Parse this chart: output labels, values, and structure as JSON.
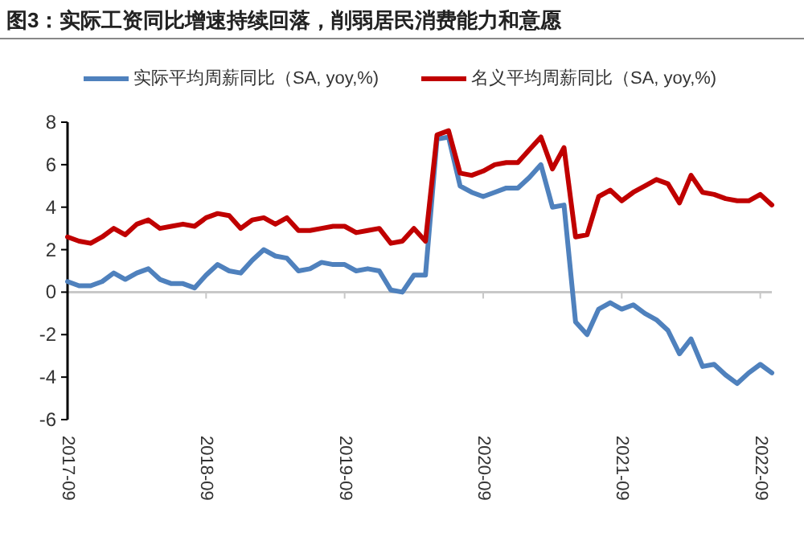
{
  "chart_data": {
    "type": "line",
    "title": "图3：实际工资同比增速持续回落，削弱居民消费能力和意愿",
    "x": [
      "2017-09",
      "2017-10",
      "2017-11",
      "2017-12",
      "2018-01",
      "2018-02",
      "2018-03",
      "2018-04",
      "2018-05",
      "2018-06",
      "2018-07",
      "2018-08",
      "2018-09",
      "2018-10",
      "2018-11",
      "2018-12",
      "2019-01",
      "2019-02",
      "2019-03",
      "2019-04",
      "2019-05",
      "2019-06",
      "2019-07",
      "2019-08",
      "2019-09",
      "2019-10",
      "2019-11",
      "2019-12",
      "2020-01",
      "2020-02",
      "2020-03",
      "2020-04",
      "2020-05",
      "2020-06",
      "2020-07",
      "2020-08",
      "2020-09",
      "2020-10",
      "2020-11",
      "2020-12",
      "2021-01",
      "2021-02",
      "2021-03",
      "2021-04",
      "2021-05",
      "2021-06",
      "2021-07",
      "2021-08",
      "2021-09",
      "2021-10",
      "2021-11",
      "2021-12",
      "2022-01",
      "2022-02",
      "2022-03",
      "2022-04",
      "2022-05",
      "2022-06",
      "2022-07",
      "2022-08",
      "2022-09",
      "2022-10"
    ],
    "series": [
      {
        "name": "实际平均周薪同比（SA, yoy,%)",
        "color": "#4f81bd",
        "values": [
          0.5,
          0.3,
          0.3,
          0.5,
          0.9,
          0.6,
          0.9,
          1.1,
          0.6,
          0.4,
          0.4,
          0.2,
          0.8,
          1.3,
          1.0,
          0.9,
          1.5,
          2.0,
          1.7,
          1.6,
          1.0,
          1.1,
          1.4,
          1.3,
          1.3,
          1.0,
          1.1,
          1.0,
          0.1,
          0.0,
          0.8,
          0.8,
          7.2,
          7.3,
          5.0,
          4.7,
          4.5,
          4.7,
          4.9,
          4.9,
          5.4,
          6.0,
          4.0,
          4.1,
          -1.4,
          -2.0,
          -0.8,
          -0.5,
          -0.8,
          -0.6,
          -1.0,
          -1.3,
          -1.8,
          -2.9,
          -2.2,
          -3.5,
          -3.4,
          -3.9,
          -4.3,
          -3.8,
          -3.4,
          -3.8
        ]
      },
      {
        "name": "名义平均周薪同比（SA, yoy,%)",
        "color": "#c00000",
        "values": [
          2.6,
          2.4,
          2.3,
          2.6,
          3.0,
          2.7,
          3.2,
          3.4,
          3.0,
          3.1,
          3.2,
          3.1,
          3.5,
          3.7,
          3.6,
          3.0,
          3.4,
          3.5,
          3.2,
          3.5,
          2.9,
          2.9,
          3.0,
          3.1,
          3.1,
          2.8,
          2.9,
          3.0,
          2.3,
          2.4,
          3.0,
          2.4,
          7.4,
          7.6,
          5.6,
          5.5,
          5.7,
          6.0,
          6.1,
          6.1,
          6.7,
          7.3,
          5.8,
          6.8,
          2.6,
          2.7,
          4.5,
          4.8,
          4.3,
          4.7,
          5.0,
          5.3,
          5.1,
          4.2,
          5.5,
          4.7,
          4.6,
          4.4,
          4.3,
          4.3,
          4.6,
          4.1
        ]
      }
    ],
    "xlim": [
      "2017-09",
      "2022-10"
    ],
    "xticks": [
      {
        "value": "2017-09",
        "label": "2017-09"
      },
      {
        "value": "2018-09",
        "label": "2018-09"
      },
      {
        "value": "2019-09",
        "label": "2019-09"
      },
      {
        "value": "2020-09",
        "label": "2020-09"
      },
      {
        "value": "2021-09",
        "label": "2021-09"
      },
      {
        "value": "2022-09",
        "label": "2022-09"
      }
    ],
    "ylim": [
      -6,
      8
    ],
    "yticks": [
      -6,
      -4,
      -2,
      0,
      2,
      4,
      6,
      8
    ],
    "ref_lines": [
      {
        "axis": "y",
        "value": 0,
        "color": "#c8c8c8"
      }
    ],
    "legend": "top",
    "line_style": "solid",
    "marker": "none"
  }
}
